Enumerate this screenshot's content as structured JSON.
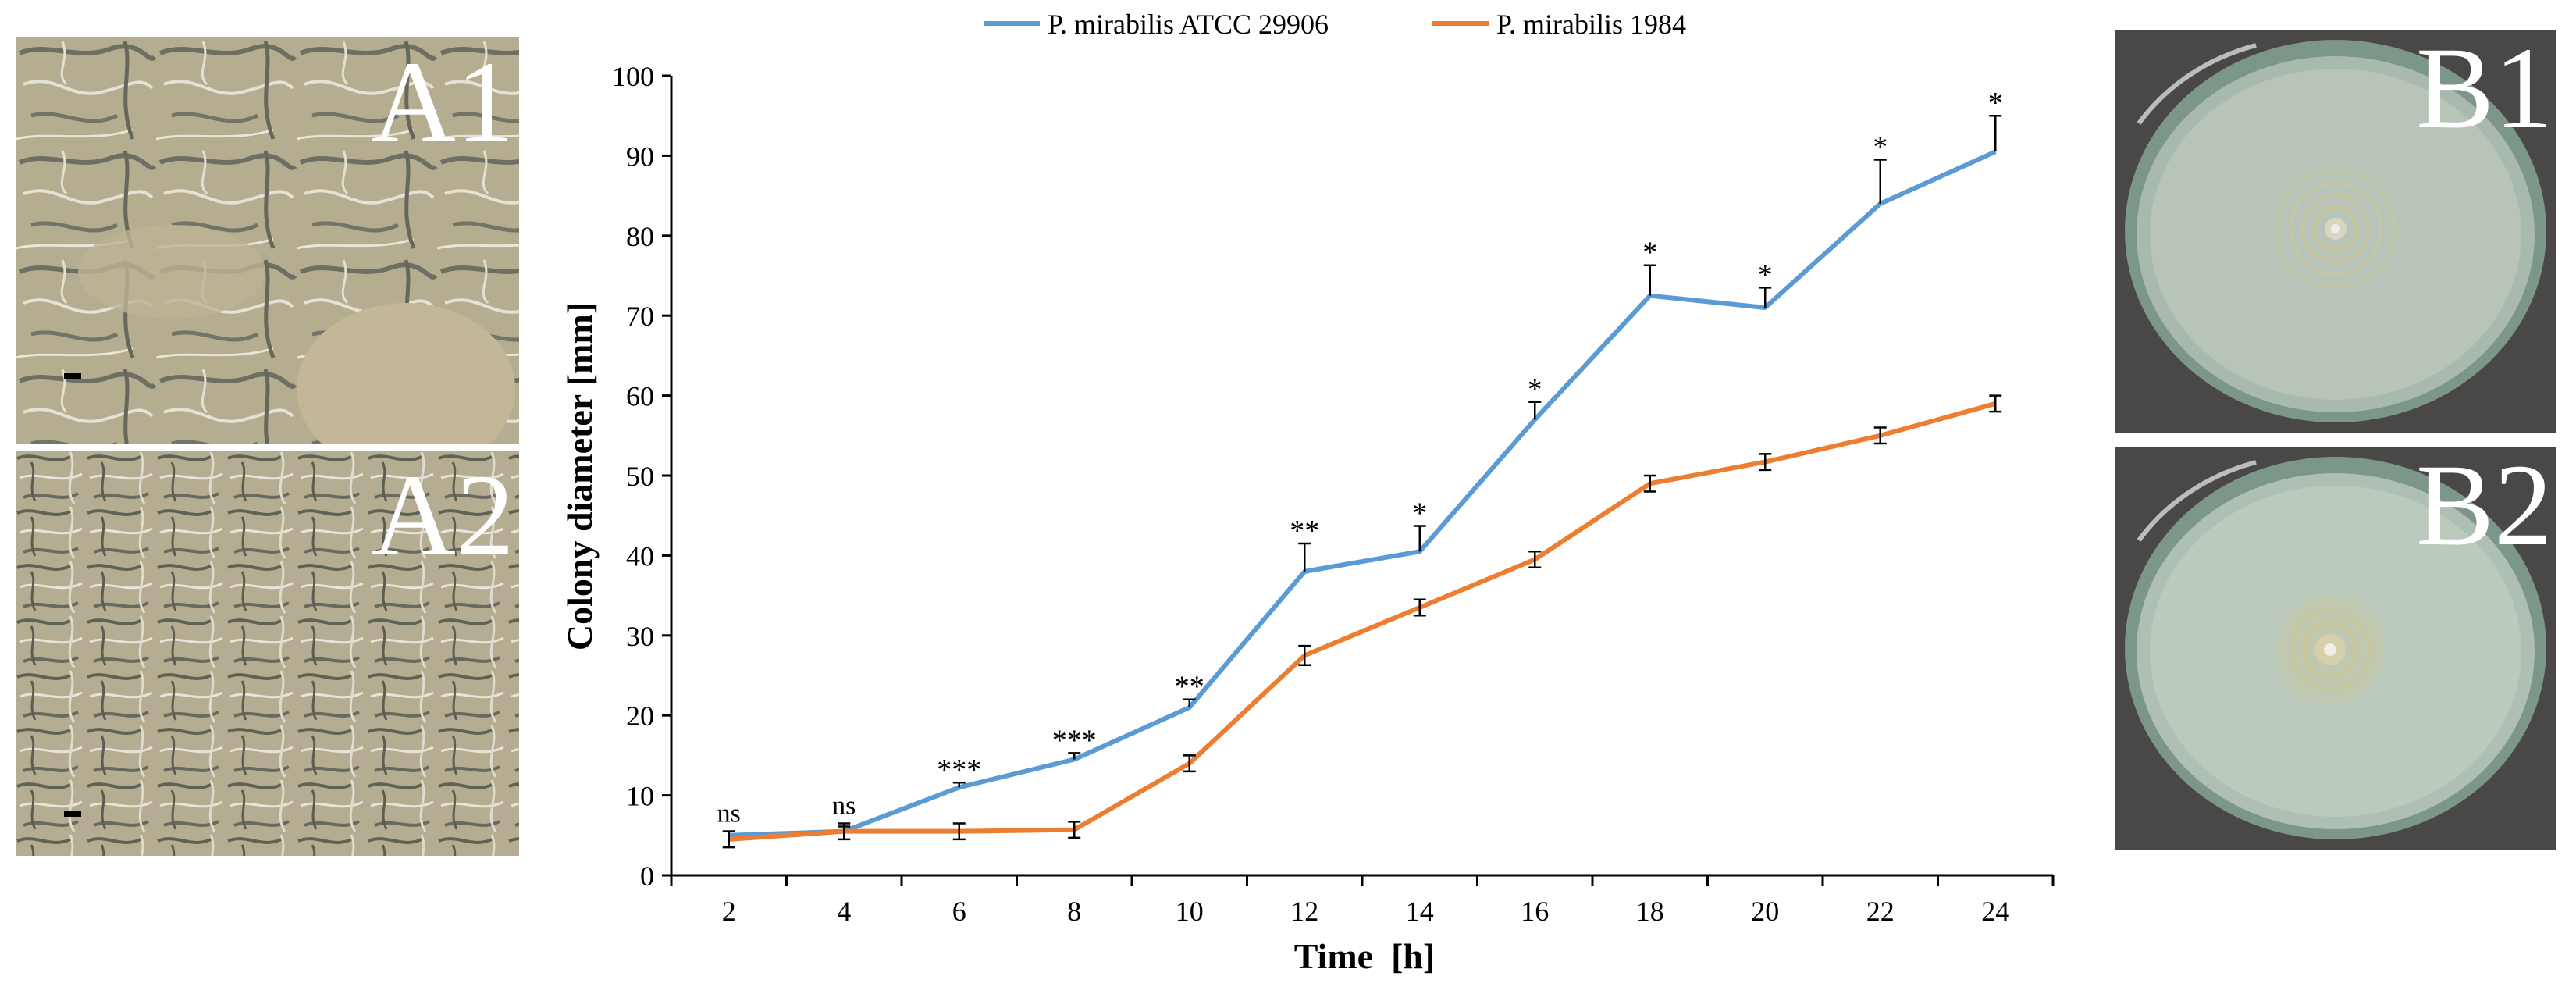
{
  "panels": {
    "a1": {
      "label": "A1"
    },
    "a2": {
      "label": "A2"
    },
    "b1": {
      "label": "B1"
    },
    "b2": {
      "label": "B2"
    }
  },
  "colors": {
    "series_atcc": "#5B9BD5",
    "series_1984": "#ED7D31",
    "axis": "#000000"
  },
  "chart_data": {
    "type": "line",
    "title": "",
    "xlabel": "Time  [h]",
    "ylabel": "Colony diameter [mm]",
    "x": [
      2,
      4,
      6,
      8,
      10,
      12,
      14,
      16,
      18,
      20,
      22,
      24
    ],
    "ylim": [
      0,
      100
    ],
    "yticks": [
      0,
      10,
      20,
      30,
      40,
      50,
      60,
      70,
      80,
      90,
      100
    ],
    "legend_position": "top",
    "series": [
      {
        "name": "P. mirabilis ATCC 29906",
        "color": "#5B9BD5",
        "values": [
          5,
          5.5,
          11,
          14.5,
          21,
          38,
          40.5,
          57,
          72.5,
          71,
          84,
          90.5
        ],
        "errors": [
          0.5,
          0.6,
          0.6,
          0.8,
          1.0,
          3.5,
          3.2,
          2.2,
          3.8,
          2.5,
          5.5,
          4.5
        ]
      },
      {
        "name": "P. mirabilis 1984",
        "color": "#ED7D31",
        "values": [
          4.5,
          5.5,
          5.5,
          5.7,
          14,
          27.5,
          33.5,
          39.5,
          49,
          51.7,
          55,
          59
        ],
        "errors": [
          1.0,
          1.0,
          1.0,
          1.0,
          1.0,
          1.2,
          1.0,
          1.0,
          1.0,
          1.0,
          1.0,
          1.0
        ]
      }
    ],
    "significance": [
      "ns",
      "ns",
      "***",
      "***",
      "**",
      "**",
      "*",
      "*",
      "*",
      "*",
      "*",
      "*"
    ]
  }
}
